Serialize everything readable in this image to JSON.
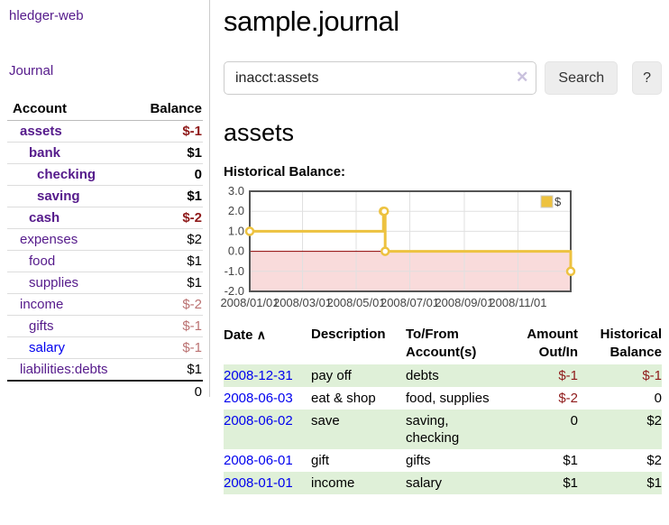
{
  "app": {
    "brand": "hledger-web",
    "nav": {
      "journal": "Journal"
    }
  },
  "sidebar": {
    "headers": {
      "account": "Account",
      "balance": "Balance"
    },
    "accounts": [
      {
        "name": "assets",
        "balance": "$-1",
        "level": 0,
        "bold": true,
        "balance_tone": "negative-strong"
      },
      {
        "name": "bank",
        "balance": "$1",
        "level": 1,
        "bold": true,
        "balance_tone": "normal"
      },
      {
        "name": "checking",
        "balance": "0",
        "level": 2,
        "bold": true,
        "balance_tone": "normal"
      },
      {
        "name": "saving",
        "balance": "$1",
        "level": 2,
        "bold": true,
        "balance_tone": "normal"
      },
      {
        "name": "cash",
        "balance": "$-2",
        "level": 1,
        "bold": true,
        "balance_tone": "negative-strong"
      },
      {
        "name": "expenses",
        "balance": "$2",
        "level": 0,
        "bold": false,
        "balance_tone": "normal"
      },
      {
        "name": "food",
        "balance": "$1",
        "level": 1,
        "bold": false,
        "balance_tone": "normal"
      },
      {
        "name": "supplies",
        "balance": "$1",
        "level": 1,
        "bold": false,
        "balance_tone": "normal"
      },
      {
        "name": "income",
        "balance": "$-2",
        "level": 0,
        "bold": false,
        "balance_tone": "negative-soft"
      },
      {
        "name": "gifts",
        "balance": "$-1",
        "level": 1,
        "bold": false,
        "balance_tone": "negative-soft"
      },
      {
        "name": "salary",
        "balance": "$-1",
        "level": 1,
        "bold": false,
        "balance_tone": "negative-soft"
      },
      {
        "name": "liabilities:debts",
        "balance": "$1",
        "level": 0,
        "bold": false,
        "balance_tone": "normal"
      }
    ],
    "total": "0"
  },
  "header": {
    "title": "sample.journal"
  },
  "search": {
    "value": "inacct:assets",
    "clear_icon": "✕",
    "button_label": "Search",
    "help_label": "?"
  },
  "account_page": {
    "title": "assets",
    "chart_label": "Historical Balance:"
  },
  "chart_data": {
    "type": "line",
    "title": "Historical Balance:",
    "step": true,
    "xlim": [
      0,
      365
    ],
    "ylim": [
      -2,
      3
    ],
    "grid": true,
    "legend": {
      "label": "$",
      "position": "top-right"
    },
    "series": [
      {
        "name": "$",
        "color": "#EDC240",
        "points": [
          {
            "date": "2008-01-01",
            "x": 0,
            "y": 1
          },
          {
            "date": "2008-06-01",
            "x": 152,
            "y": 2
          },
          {
            "date": "2008-06-02",
            "x": 153,
            "y": 2
          },
          {
            "date": "2008-06-03",
            "x": 154,
            "y": 0
          },
          {
            "date": "2008-12-31",
            "x": 365,
            "y": -1
          }
        ]
      }
    ],
    "x_ticks": [
      {
        "x": 0,
        "label": "2008/01/01"
      },
      {
        "x": 60,
        "label": "2008/03/01"
      },
      {
        "x": 121,
        "label": "2008/05/01"
      },
      {
        "x": 182,
        "label": "2008/07/01"
      },
      {
        "x": 244,
        "label": "2008/09/01"
      },
      {
        "x": 305,
        "label": "2008/11/01"
      }
    ],
    "y_ticks": [
      {
        "v": 3,
        "label": "3.0"
      },
      {
        "v": 2,
        "label": "2.0"
      },
      {
        "v": 1,
        "label": "1.0"
      },
      {
        "v": 0,
        "label": "0.0"
      },
      {
        "v": -1,
        "label": "-1.0"
      },
      {
        "v": -2,
        "label": "-2.0"
      }
    ],
    "negative_region_color": "#f9dbdb",
    "zero_line_color": "#8b0000"
  },
  "register": {
    "headers": {
      "date": "Date",
      "sort_icon": "∧",
      "description": "Description",
      "accounts": "To/From Account(s)",
      "amount": "Amount Out/In",
      "balance": "Historical Balance"
    },
    "rows": [
      {
        "date": "2008-12-31",
        "description": "pay off",
        "accounts": "debts",
        "amount": "$-1",
        "balance": "$-1"
      },
      {
        "date": "2008-06-03",
        "description": "eat & shop",
        "accounts": "food, supplies",
        "amount": "$-2",
        "balance": "0"
      },
      {
        "date": "2008-06-02",
        "description": "save",
        "accounts": "saving,\nchecking",
        "amount": "0",
        "balance": "$2"
      },
      {
        "date": "2008-06-01",
        "description": "gift",
        "accounts": "gifts",
        "amount": "$1",
        "balance": "$2"
      },
      {
        "date": "2008-01-01",
        "description": "income",
        "accounts": "salary",
        "amount": "$1",
        "balance": "$1"
      }
    ]
  },
  "colors": {
    "link_purple": "#551a8b",
    "link_blue": "#0000ee",
    "negative_strong": "#8f1a1a",
    "negative_soft": "#bb7272",
    "row_stripe_green": "#dff0d8",
    "chart_line_gold": "#EDC240",
    "chart_negative_region_pink": "#f9dbdb",
    "chart_zero_line_red": "#8b0000"
  }
}
